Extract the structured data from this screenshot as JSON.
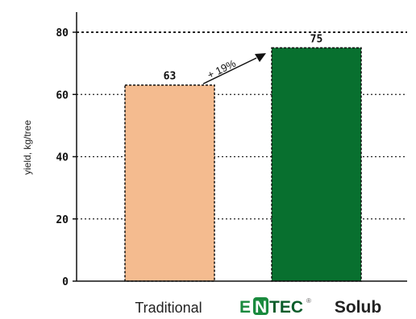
{
  "chart_data": {
    "type": "bar",
    "categories": [
      "Traditional",
      "ENTEC Solub"
    ],
    "values": [
      63,
      75
    ],
    "bar_value_labels": [
      "63",
      "75"
    ],
    "bar_colors": [
      "#f4bb8f",
      "#08702f"
    ],
    "ylabel": "yield, kg/tree",
    "ylim": [
      0,
      85
    ],
    "yticks": [
      0,
      20,
      40,
      60,
      80
    ],
    "grid": "dotted-horizontal",
    "annotation": {
      "text": "+ 19%",
      "from": "Traditional",
      "to": "ENTEC Solub"
    }
  },
  "logo": {
    "e": "E",
    "n": "N",
    "tec": "TEC",
    "registered": "®",
    "suffix": "Solub",
    "colors": {
      "e": "#1a8a3e",
      "n_bg": "#1a8a3e",
      "tec": "#0b5c2a"
    }
  }
}
